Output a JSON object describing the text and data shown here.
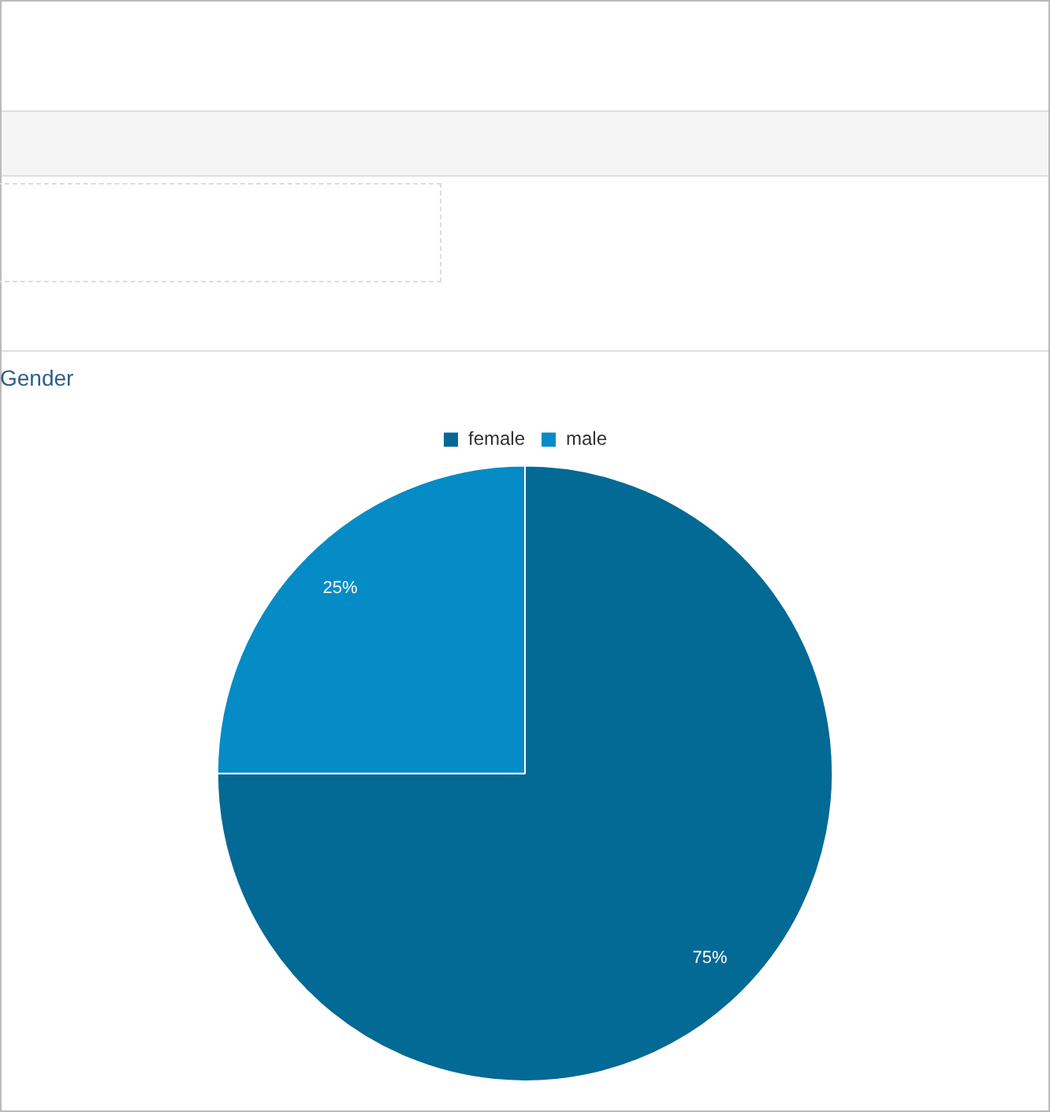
{
  "chart_data": {
    "type": "pie",
    "title": "Gender",
    "categories": [
      "female",
      "male"
    ],
    "values": [
      75,
      25
    ],
    "colors": [
      "#036995",
      "#058bc5"
    ],
    "value_labels": [
      "75%",
      "25%"
    ],
    "legend": "top"
  }
}
